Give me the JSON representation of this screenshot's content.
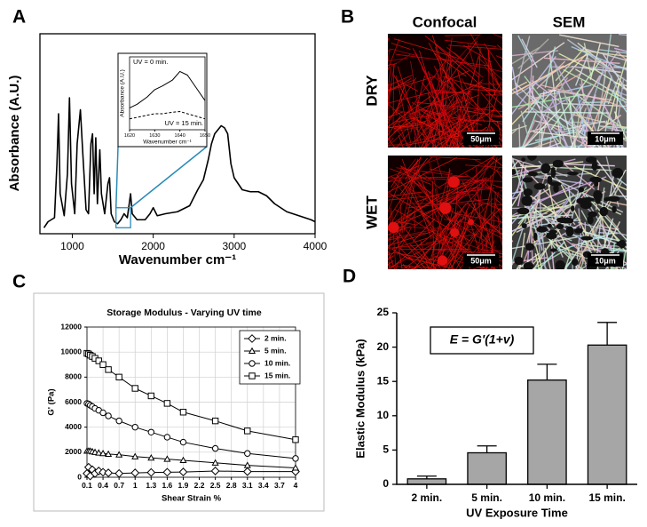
{
  "panels": {
    "labels": [
      "A",
      "B",
      "C",
      "D"
    ]
  },
  "confocal_sem": {
    "columns": [
      "Confocal",
      "SEM"
    ],
    "rows": [
      "DRY",
      "WET"
    ],
    "scale_bars": [
      "50μm",
      "10μm"
    ]
  },
  "chart_data": [
    {
      "type": "line",
      "xlabel": "Wavenumber cm⁻¹",
      "ylabel": "Absorbance (A.U.)",
      "xlim": [
        600,
        4000
      ],
      "xticks": [
        1000,
        2000,
        3000,
        4000
      ],
      "ylim": [
        0,
        1
      ],
      "color": "#000000",
      "x": [
        650,
        700,
        780,
        810,
        830,
        850,
        900,
        940,
        965,
        990,
        1030,
        1060,
        1100,
        1130,
        1170,
        1200,
        1230,
        1250,
        1270,
        1290,
        1310,
        1340,
        1360,
        1400,
        1440,
        1460,
        1480,
        1520,
        1560,
        1600,
        1640,
        1680,
        1720,
        1740,
        1800,
        1900,
        1960,
        2000,
        2050,
        2150,
        2300,
        2450,
        2550,
        2620,
        2680,
        2720,
        2760,
        2800,
        2840,
        2880,
        2920,
        2960,
        3000,
        3100,
        3200,
        3300,
        3400,
        3500,
        3650,
        3800,
        3950,
        4000
      ],
      "values": [
        0.03,
        0.06,
        0.08,
        0.35,
        0.6,
        0.2,
        0.09,
        0.3,
        0.68,
        0.25,
        0.1,
        0.45,
        0.62,
        0.4,
        0.12,
        0.1,
        0.45,
        0.5,
        0.2,
        0.48,
        0.15,
        0.42,
        0.2,
        0.1,
        0.25,
        0.28,
        0.1,
        0.06,
        0.05,
        0.07,
        0.1,
        0.08,
        0.2,
        0.1,
        0.07,
        0.07,
        0.1,
        0.13,
        0.09,
        0.1,
        0.11,
        0.14,
        0.22,
        0.27,
        0.37,
        0.45,
        0.5,
        0.52,
        0.54,
        0.53,
        0.5,
        0.35,
        0.28,
        0.22,
        0.21,
        0.21,
        0.19,
        0.15,
        0.11,
        0.09,
        0.07,
        0.06
      ]
    },
    {
      "type": "line",
      "xlabel": "Wavenumber cm⁻¹",
      "ylabel": "Absorbance (A.U.)",
      "xlim": [
        1620,
        1650
      ],
      "xticks": [
        1620,
        1630,
        1640,
        1650
      ],
      "ylim": [
        0,
        1
      ],
      "x": [
        1620,
        1623,
        1627,
        1630,
        1633,
        1637,
        1640,
        1643,
        1647,
        1650
      ],
      "series": [
        {
          "name": "UV = 0 min.",
          "color": "#000000",
          "dashed": false,
          "values": [
            0.3,
            0.35,
            0.45,
            0.55,
            0.6,
            0.68,
            0.8,
            0.75,
            0.55,
            0.4
          ]
        },
        {
          "name": "UV = 15 min.",
          "color": "#000000",
          "dashed": true,
          "values": [
            0.15,
            0.17,
            0.2,
            0.22,
            0.22,
            0.24,
            0.25,
            0.22,
            0.18,
            0.15
          ]
        }
      ]
    },
    {
      "type": "line",
      "title": "Storage Modulus - Varying UV time",
      "xlabel": "Shear Strain %",
      "ylabel": "G' (Pa)",
      "xlim": [
        0.1,
        4
      ],
      "xticks": [
        0.1,
        0.4,
        0.7,
        1,
        1.3,
        1.6,
        1.9,
        2.2,
        2.5,
        2.8,
        3.1,
        3.4,
        3.7,
        4
      ],
      "ylim": [
        0,
        12000
      ],
      "yticks": [
        0,
        2000,
        4000,
        6000,
        8000,
        10000,
        12000
      ],
      "grid": true,
      "x": [
        0.1,
        0.13,
        0.16,
        0.2,
        0.25,
        0.32,
        0.4,
        0.5,
        0.7,
        1,
        1.3,
        1.6,
        1.9,
        2.5,
        3.1,
        4
      ],
      "series": [
        {
          "name": "2 min.",
          "color": "#000000",
          "marker": "diamond",
          "values": [
            300,
            800,
            100,
            600,
            300,
            500,
            400,
            350,
            300,
            350,
            380,
            400,
            420,
            500,
            450,
            450
          ]
        },
        {
          "name": "5 min.",
          "color": "#000000",
          "marker": "triangle",
          "values": [
            2100,
            2100,
            2100,
            2050,
            2000,
            1950,
            1900,
            1850,
            1800,
            1650,
            1550,
            1450,
            1350,
            1150,
            950,
            750
          ]
        },
        {
          "name": "10 min.",
          "color": "#000000",
          "marker": "circle",
          "values": [
            5900,
            5850,
            5750,
            5650,
            5500,
            5350,
            5150,
            4900,
            4500,
            4000,
            3600,
            3200,
            2800,
            2300,
            1900,
            1500
          ]
        },
        {
          "name": "15 min.",
          "color": "#000000",
          "marker": "square",
          "values": [
            9900,
            9850,
            9750,
            9650,
            9500,
            9300,
            9000,
            8600,
            8000,
            7100,
            6500,
            5900,
            5200,
            4500,
            3700,
            3000
          ]
        }
      ]
    },
    {
      "type": "bar",
      "annotation": "E = G'(1+v)",
      "xlabel": "UV Exposure Time",
      "ylabel": "Elastic Modulus (kPa)",
      "categories": [
        "2 min.",
        "5 min.",
        "10 min.",
        "15 min."
      ],
      "values": [
        0.8,
        4.6,
        15.2,
        20.3
      ],
      "errors": [
        0.4,
        1.0,
        2.3,
        3.3
      ],
      "color": "#a6a6a6",
      "ylim": [
        0,
        25
      ],
      "yticks": [
        0,
        5,
        10,
        15,
        20,
        25
      ]
    }
  ]
}
